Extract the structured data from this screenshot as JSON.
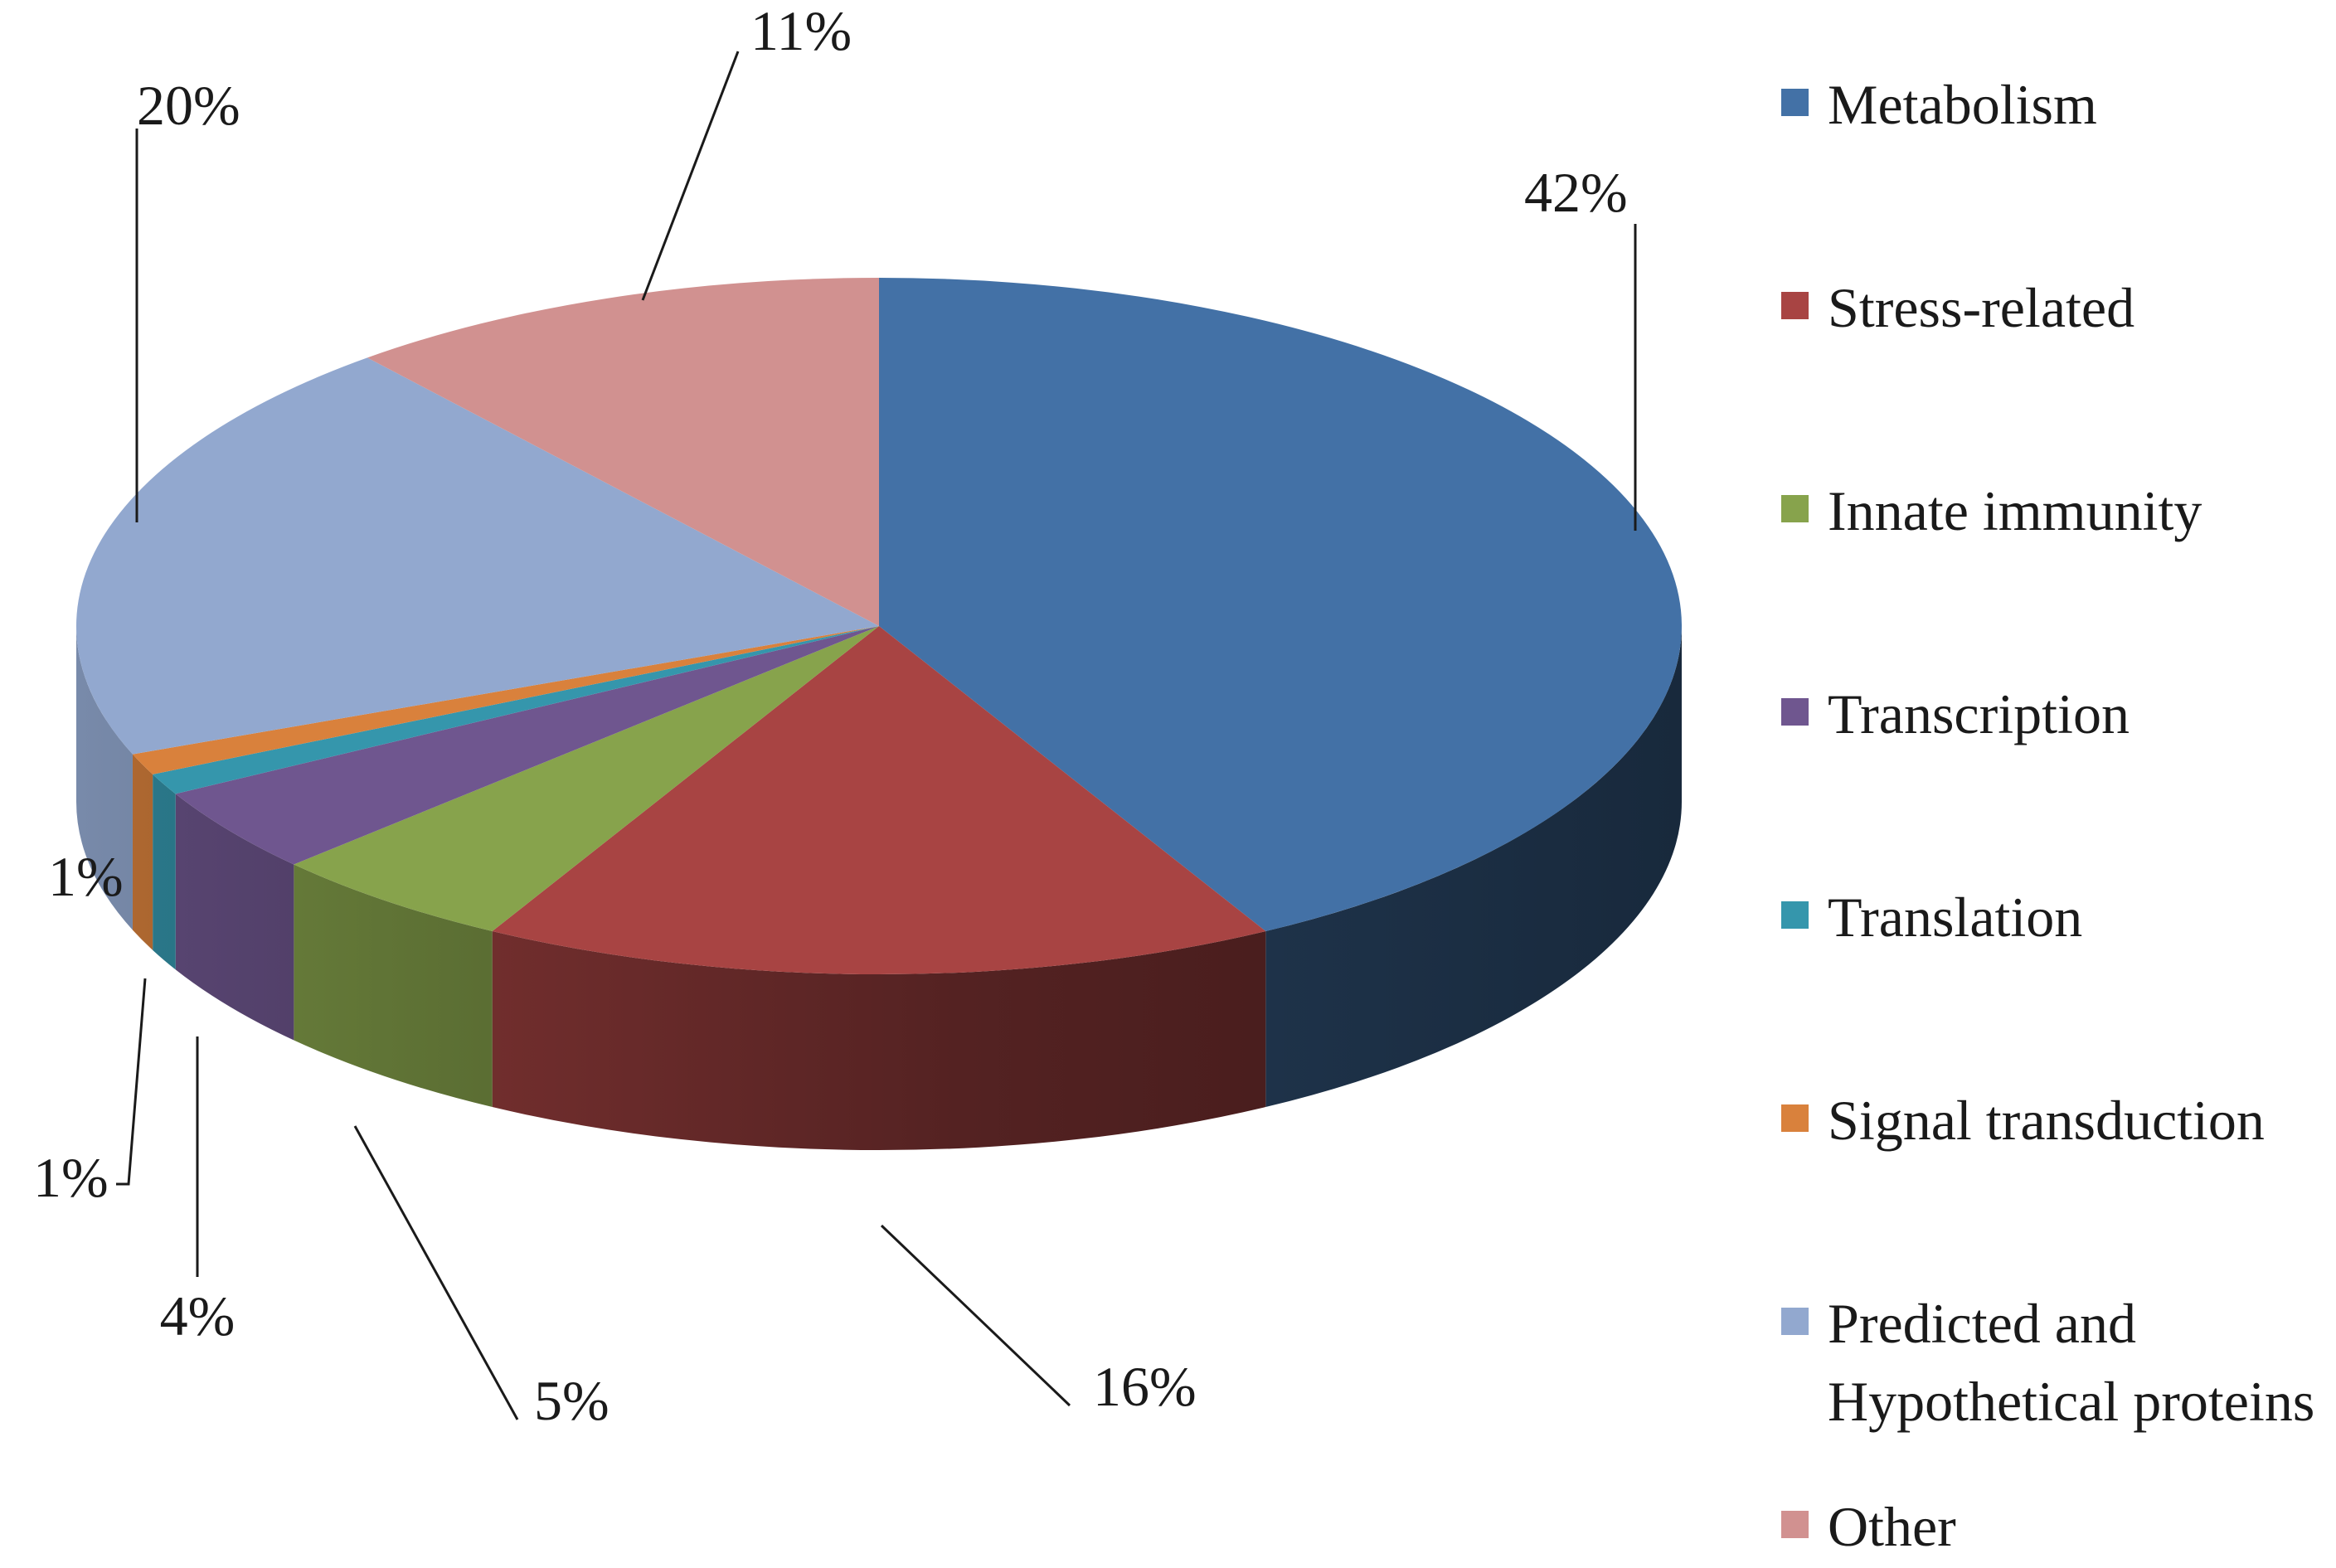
{
  "chart_data": {
    "type": "pie",
    "style": "3d",
    "categories": [
      "Metabolism",
      "Stress-related",
      "Innate immunity",
      "Transcription",
      "Translation",
      "Signal transduction",
      "Predicted and Hypothetical proteins",
      "Other"
    ],
    "values": [
      42,
      16,
      5,
      4,
      1,
      1,
      20,
      11
    ],
    "data_labels": [
      "42%",
      "16%",
      "5%",
      "4%",
      "1%",
      "1%",
      "20%",
      "11%"
    ],
    "colors": [
      "#4371a6",
      "#a84443",
      "#87a34c",
      "#6f568f",
      "#3596ac",
      "#d9813c",
      "#92a8cf",
      "#d19190"
    ],
    "legend": {
      "position": "right",
      "items": [
        {
          "label": "Metabolism",
          "color": "#4371a6"
        },
        {
          "label": "Stress-related",
          "color": "#a84443"
        },
        {
          "label": "Innate immunity",
          "color": "#87a34c"
        },
        {
          "label": "Transcription",
          "color": "#6f568f"
        },
        {
          "label": "Translation",
          "color": "#3596ac"
        },
        {
          "label": "Signal transduction",
          "color": "#d9813c"
        },
        {
          "label": "Predicted and",
          "label_line2": "Hypothetical proteins",
          "color": "#92a8cf"
        },
        {
          "label": "Other",
          "color": "#d19190"
        }
      ]
    }
  }
}
